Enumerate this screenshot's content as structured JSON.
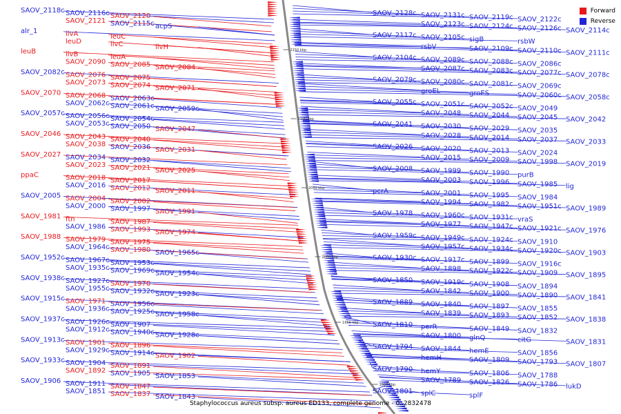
{
  "colors": {
    "forward": "#e8191c",
    "reverse": "#2227d6",
    "backbone": "#888888"
  },
  "legend": {
    "forward": "Forward",
    "reverse": "Reverse"
  },
  "caption": "Staphylococcus aureus subsp. aureus ED133, complete genome - 0..2832478",
  "ticks": [
    "2150 kbp",
    "2100 kbp",
    "2050 kbp",
    "2000 kbp",
    "1950 kbp",
    "1900 kbp"
  ],
  "left_genes": [
    {
      "name": "SAOV_2118c",
      "s": "reverse"
    },
    {
      "name": "SAOV_2116c",
      "s": "reverse"
    },
    {
      "name": "SAOV_2120",
      "s": "forward"
    },
    {
      "name": "SAOV_2121",
      "s": "forward"
    },
    {
      "name": "SAOV_2115c",
      "s": "reverse"
    },
    {
      "name": "acpS",
      "s": "reverse"
    },
    {
      "name": "alr_1",
      "s": "reverse"
    },
    {
      "name": "ilvA",
      "s": "forward"
    },
    {
      "name": "leuC",
      "s": "forward"
    },
    {
      "name": "leuD",
      "s": "forward"
    },
    {
      "name": "ilvC",
      "s": "forward"
    },
    {
      "name": "ilvH",
      "s": "forward"
    },
    {
      "name": "leuB",
      "s": "forward"
    },
    {
      "name": "ilvB",
      "s": "forward"
    },
    {
      "name": "leuA",
      "s": "forward"
    },
    {
      "name": "SAOV_2090",
      "s": "forward"
    },
    {
      "name": "SAOV_2085",
      "s": "forward"
    },
    {
      "name": "SAOV_2084",
      "s": "forward"
    },
    {
      "name": "SAOV_2082c",
      "s": "reverse"
    },
    {
      "name": "SAOV_2076",
      "s": "forward"
    },
    {
      "name": "SAOV_2075",
      "s": "forward"
    },
    {
      "name": "SAOV_2073",
      "s": "forward"
    },
    {
      "name": "SAOV_2074",
      "s": "forward"
    },
    {
      "name": "SAOV_2071",
      "s": "forward"
    },
    {
      "name": "SAOV_2070",
      "s": "forward"
    },
    {
      "name": "SAOV_2068",
      "s": "forward"
    },
    {
      "name": "SAOV_2063c",
      "s": "reverse"
    },
    {
      "name": "SAOV_2062c",
      "s": "reverse"
    },
    {
      "name": "SAOV_2061c",
      "s": "reverse"
    },
    {
      "name": "SAOV_2059c",
      "s": "reverse"
    },
    {
      "name": "SAOV_2057c",
      "s": "reverse"
    },
    {
      "name": "SAOV_2056c",
      "s": "reverse"
    },
    {
      "name": "SAOV_2054c",
      "s": "reverse"
    },
    {
      "name": "SAOV_2053c",
      "s": "reverse"
    },
    {
      "name": "SAOV_2050",
      "s": "reverse"
    },
    {
      "name": "SAOV_2047",
      "s": "forward"
    },
    {
      "name": "SAOV_2046",
      "s": "forward"
    },
    {
      "name": "SAOV_2043",
      "s": "forward"
    },
    {
      "name": "SAOV_2040",
      "s": "forward"
    },
    {
      "name": "SAOV_2038",
      "s": "forward"
    },
    {
      "name": "SAOV_2036",
      "s": "reverse"
    },
    {
      "name": "SAOV_2031",
      "s": "forward"
    },
    {
      "name": "SAOV_2027",
      "s": "forward"
    },
    {
      "name": "SAOV_2034",
      "s": "reverse"
    },
    {
      "name": "SAOV_2032",
      "s": "reverse"
    },
    {
      "name": "SAOV_2023",
      "s": "forward"
    },
    {
      "name": "SAOV_2021",
      "s": "forward"
    },
    {
      "name": "SAOV_2025",
      "s": "forward"
    },
    {
      "name": "ppaC",
      "s": "forward"
    },
    {
      "name": "SAOV_2018",
      "s": "forward"
    },
    {
      "name": "SAOV_2017",
      "s": "forward"
    },
    {
      "name": "SAOV_2016",
      "s": "reverse"
    },
    {
      "name": "SAOV_2012",
      "s": "forward"
    },
    {
      "name": "SAOV_2011",
      "s": "forward"
    },
    {
      "name": "SAOV_2005",
      "s": "reverse"
    },
    {
      "name": "SAOV_2004",
      "s": "forward"
    },
    {
      "name": "SAOV_2002",
      "s": "forward"
    },
    {
      "name": "SAOV_2000",
      "s": "reverse"
    },
    {
      "name": "SAOV_1997",
      "s": "reverse"
    },
    {
      "name": "SAOV_1991",
      "s": "forward"
    },
    {
      "name": "SAOV_1981",
      "s": "forward"
    },
    {
      "name": "ftn",
      "s": "forward"
    },
    {
      "name": "SAOV_1987",
      "s": "forward"
    },
    {
      "name": "SAOV_1986",
      "s": "reverse"
    },
    {
      "name": "SAOV_1993",
      "s": "forward"
    },
    {
      "name": "SAOV_1974",
      "s": "forward"
    },
    {
      "name": "SAOV_1988",
      "s": "forward"
    },
    {
      "name": "SAOV_1979",
      "s": "forward"
    },
    {
      "name": "SAOV_1975",
      "s": "forward"
    },
    {
      "name": "SAOV_1964c",
      "s": "reverse"
    },
    {
      "name": "SAOV_1980",
      "s": "forward"
    },
    {
      "name": "SAOV_1965c",
      "s": "reverse"
    },
    {
      "name": "SAOV_1952c",
      "s": "reverse"
    },
    {
      "name": "SAOV_1967c",
      "s": "reverse"
    },
    {
      "name": "SAOV_1953c",
      "s": "reverse"
    },
    {
      "name": "SAOV_1935c",
      "s": "reverse"
    },
    {
      "name": "SAOV_1969c",
      "s": "reverse"
    },
    {
      "name": "SAOV_1954c",
      "s": "reverse"
    },
    {
      "name": "SAOV_1938c",
      "s": "reverse"
    },
    {
      "name": "SAOV_1927c",
      "s": "reverse"
    },
    {
      "name": "SAOV_1970",
      "s": "forward"
    },
    {
      "name": "SAOV_1955c",
      "s": "reverse"
    },
    {
      "name": "SAOV_1932c",
      "s": "reverse"
    },
    {
      "name": "SAOV_1923c",
      "s": "reverse"
    },
    {
      "name": "SAOV_1915c",
      "s": "reverse"
    },
    {
      "name": "SAOV_1971",
      "s": "forward"
    },
    {
      "name": "SAOV_1956c",
      "s": "reverse"
    },
    {
      "name": "SAOV_1936c",
      "s": "reverse"
    },
    {
      "name": "SAOV_1925c",
      "s": "reverse"
    },
    {
      "name": "SAOV_1958c",
      "s": "reverse"
    },
    {
      "name": "SAOV_1937c",
      "s": "reverse"
    },
    {
      "name": "SAOV_1926c",
      "s": "reverse"
    },
    {
      "name": "SAOV_1907",
      "s": "reverse"
    },
    {
      "name": "SAOV_1912c",
      "s": "reverse"
    },
    {
      "name": "SAOV_1940c",
      "s": "reverse"
    },
    {
      "name": "SAOV_1928c",
      "s": "reverse"
    },
    {
      "name": "SAOV_1913c",
      "s": "reverse"
    },
    {
      "name": "SAOV_1901",
      "s": "forward"
    },
    {
      "name": "SAOV_1896",
      "s": "forward"
    },
    {
      "name": "SAOV_1929c",
      "s": "reverse"
    },
    {
      "name": "SAOV_1914c",
      "s": "reverse"
    },
    {
      "name": "SAOV_1902",
      "s": "forward"
    },
    {
      "name": "SAOV_1933c",
      "s": "reverse"
    },
    {
      "name": "SAOV_1904",
      "s": "reverse"
    },
    {
      "name": "SAOV_1891",
      "s": "forward"
    },
    {
      "name": "SAOV_1892",
      "s": "forward"
    },
    {
      "name": "SAOV_1905",
      "s": "reverse"
    },
    {
      "name": "SAOV_1853",
      "s": "reverse"
    },
    {
      "name": "SAOV_1906",
      "s": "reverse"
    },
    {
      "name": "SAOV_1911",
      "s": "reverse"
    },
    {
      "name": "SAOV_1847",
      "s": "forward"
    },
    {
      "name": "SAOV_1851",
      "s": "reverse"
    },
    {
      "name": "SAOV_1837",
      "s": "forward"
    },
    {
      "name": "SAOV_1843",
      "s": "reverse"
    }
  ],
  "right_genes": [
    "SAOV_2128c",
    "SAOV_2131c",
    "SAOV_2119c",
    "SAOV_2122c",
    "SAOV_2123c",
    "SAOV_2124c",
    "SAOV_2126c",
    "SAOV_2114c",
    "SAOV_2117c",
    "SAOV_2105c",
    "sigB",
    "rsbW",
    "rsbV",
    "SAOV_2109c",
    "SAOV_2110c",
    "SAOV_2111c",
    "SAOV_2104c",
    "SAOV_2089c",
    "SAOV_2088c",
    "SAOV_2086c",
    "SAOV_2087c",
    "SAOV_2083c",
    "SAOV_2077c",
    "SAOV_2078c",
    "SAOV_2079c",
    "SAOV_2080c",
    "SAOV_2081c",
    "SAOV_2069c",
    "groEL",
    "groES",
    "SAOV_2060c",
    "SAOV_2058c",
    "SAOV_2055c",
    "SAOV_2051c",
    "SAOV_2052c",
    "SAOV_2049",
    "SAOV_2048",
    "SAOV_2044",
    "SAOV_2045",
    "SAOV_2042",
    "SAOV_2041",
    "SAOV_2030",
    "SAOV_2029",
    "SAOV_2035",
    "SAOV_2028",
    "SAOV_2014",
    "SAOV_2037",
    "SAOV_2033",
    "SAOV_2026",
    "SAOV_2020",
    "SAOV_2013",
    "SAOV_2024",
    "SAOV_2015",
    "SAOV_2009",
    "SAOV_1998",
    "SAOV_2019",
    "SAOV_2008",
    "SAOV_1999",
    "SAOV_1990",
    "purB",
    "SAOV_2003",
    "SAOV_1996",
    "SAOV_1985",
    "lig",
    "pcrA",
    "SAOV_2001",
    "SAOV_1995",
    "SAOV_1984",
    "SAOV_1994",
    "SAOV_1982",
    "SAOV_1951c",
    "SAOV_1989",
    "SAOV_1978",
    "SAOV_1960c",
    "SAOV_1931c",
    "vraS",
    "SAOV_1977",
    "SAOV_1947c",
    "SAOV_1921c",
    "SAOV_1976",
    "SAOV_1959c",
    "SAOV_1949c",
    "SAOV_1924c",
    "SAOV_1910",
    "SAOV_1957c",
    "SAOV_1934c",
    "SAOV_1920c",
    "SAOV_1903",
    "SAOV_1930c",
    "SAOV_1917c",
    "SAOV_1899",
    "SAOV_1916c",
    "SAOV_1898",
    "SAOV_1922c",
    "SAOV_1909",
    "SAOV_1895",
    "SAOV_1850",
    "SAOV_1919c",
    "SAOV_1908",
    "SAOV_1894",
    "SAOV_1842",
    "SAOV_1900",
    "SAOV_1890",
    "SAOV_1841",
    "SAOV_1889",
    "SAOV_1840",
    "SAOV_1897",
    "SAOV_1855",
    "SAOV_1839",
    "SAOV_1893",
    "SAOV_1852",
    "SAOV_1838",
    "SAOV_1810",
    "perR",
    "SAOV_1849",
    "SAOV_1832",
    "SAOV_1800",
    "glnQ",
    "citG",
    "SAOV_1831",
    "SAOV_1794",
    "SAOV_1844",
    "hemE",
    "SAOV_1856",
    "hemH",
    "SAOV_1809",
    "SAOV_1793",
    "SAOV_1807",
    "SAOV_1790",
    "hemY",
    "SAOV_1806",
    "SAOV_1788",
    "SAOV_1789",
    "SAOV_1826",
    "SAOV_1786",
    "lukD",
    "SAOV_1801",
    "splC",
    "splF"
  ]
}
